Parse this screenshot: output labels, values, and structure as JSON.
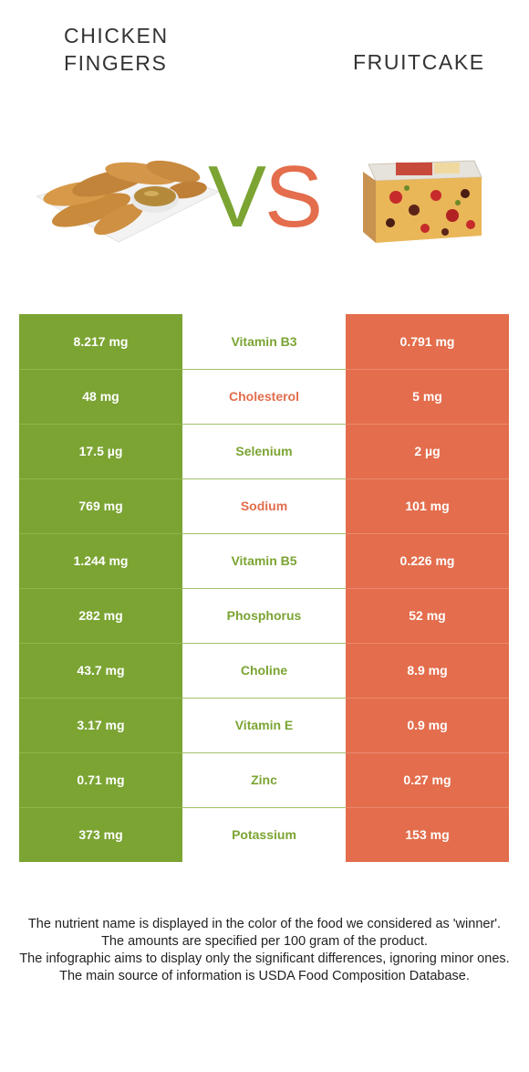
{
  "header": {
    "left_food": "CHICKEN FINGERS",
    "right_food": "FRUITCAKE",
    "vs_left": "V",
    "vs_right": "S"
  },
  "colors": {
    "left": "#7ba433",
    "right": "#e36d4c"
  },
  "rows": [
    {
      "nutrient": "Vitamin B3",
      "left": "8.217 mg",
      "right": "0.791 mg",
      "winner": "left"
    },
    {
      "nutrient": "Cholesterol",
      "left": "48 mg",
      "right": "5 mg",
      "winner": "right"
    },
    {
      "nutrient": "Selenium",
      "left": "17.5 µg",
      "right": "2 µg",
      "winner": "left"
    },
    {
      "nutrient": "Sodium",
      "left": "769 mg",
      "right": "101 mg",
      "winner": "right"
    },
    {
      "nutrient": "Vitamin B5",
      "left": "1.244 mg",
      "right": "0.226 mg",
      "winner": "left"
    },
    {
      "nutrient": "Phosphorus",
      "left": "282 mg",
      "right": "52 mg",
      "winner": "left"
    },
    {
      "nutrient": "Choline",
      "left": "43.7 mg",
      "right": "8.9 mg",
      "winner": "left"
    },
    {
      "nutrient": "Vitamin E",
      "left": "3.17 mg",
      "right": "0.9 mg",
      "winner": "left"
    },
    {
      "nutrient": "Zinc",
      "left": "0.71 mg",
      "right": "0.27 mg",
      "winner": "left"
    },
    {
      "nutrient": "Potassium",
      "left": "373 mg",
      "right": "153 mg",
      "winner": "left"
    }
  ],
  "footer": {
    "line1": "The nutrient name is displayed in the color of the food we considered as 'winner'.",
    "line2": "The amounts are specified per 100 gram of the product.",
    "line3": "The infographic aims to display only the significant differences, ignoring minor ones.",
    "line4": "The main source of information is USDA Food Composition Database."
  }
}
